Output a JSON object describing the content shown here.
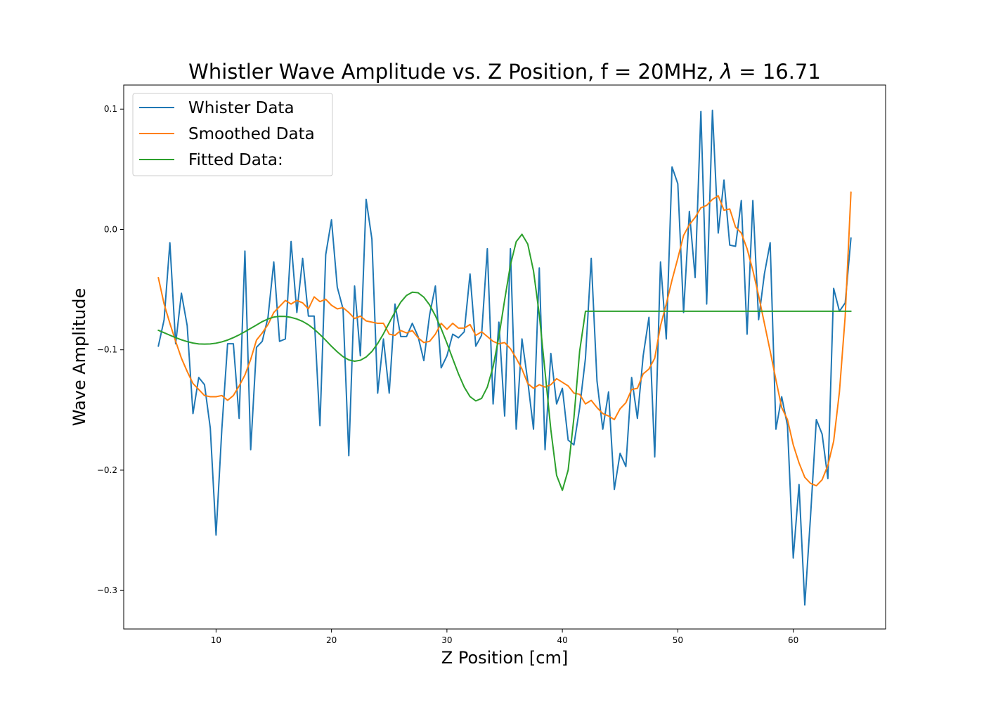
{
  "chart_data": {
    "type": "line",
    "title_prefix": "Whistler Wave Amplitude vs. Z Position, f = 20MHz, ",
    "title_lambda": "λ",
    "title_suffix": " =  16.71",
    "xlabel": "Z Position [cm]",
    "ylabel": "Wave Amplitude",
    "xlim": [
      2,
      68
    ],
    "ylim": [
      -0.332,
      0.12
    ],
    "xticks": [
      10,
      20,
      30,
      40,
      50,
      60
    ],
    "xtick_labels": [
      "10",
      "20",
      "30",
      "40",
      "50",
      "60"
    ],
    "yticks": [
      0.1,
      0.0,
      -0.1,
      -0.2,
      -0.3
    ],
    "ytick_labels": [
      "0.1",
      "0.0",
      "−0.1",
      "−0.2",
      "−0.3"
    ],
    "grid": false,
    "legend_position": "upper-left",
    "series": [
      {
        "name": "Whister Data",
        "color": "#1f77b4",
        "x": [
          5.0,
          5.5,
          6.0,
          6.5,
          7.0,
          7.5,
          8.0,
          8.5,
          9.0,
          9.5,
          10.0,
          10.5,
          11.0,
          11.5,
          12.0,
          12.5,
          13.0,
          13.5,
          14.0,
          14.5,
          15.0,
          15.5,
          16.0,
          16.5,
          17.0,
          17.5,
          18.0,
          18.5,
          19.0,
          19.5,
          20.0,
          20.5,
          21.0,
          21.5,
          22.0,
          22.5,
          23.0,
          23.5,
          24.0,
          24.5,
          25.0,
          25.5,
          26.0,
          26.5,
          27.0,
          27.5,
          28.0,
          28.5,
          29.0,
          29.5,
          30.0,
          30.5,
          31.0,
          31.5,
          32.0,
          32.5,
          33.0,
          33.5,
          34.0,
          34.5,
          35.0,
          35.5,
          36.0,
          36.5,
          37.0,
          37.5,
          38.0,
          38.5,
          39.0,
          39.5,
          40.0,
          40.5,
          41.0,
          41.5,
          42.0,
          42.5,
          43.0,
          43.5,
          44.0,
          44.5,
          45.0,
          45.5,
          46.0,
          46.5,
          47.0,
          47.5,
          48.0,
          48.5,
          49.0,
          49.5,
          50.0,
          50.5,
          51.0,
          51.5,
          52.0,
          52.5,
          53.0,
          53.5,
          54.0,
          54.5,
          55.0,
          55.5,
          56.0,
          56.5,
          57.0,
          57.5,
          58.0,
          58.5,
          59.0,
          59.5,
          60.0,
          60.5,
          61.0,
          61.5,
          62.0,
          62.5,
          63.0,
          63.5,
          64.0,
          64.5,
          65.0
        ],
        "y": [
          -0.097,
          -0.075,
          -0.011,
          -0.095,
          -0.053,
          -0.08,
          -0.153,
          -0.123,
          -0.129,
          -0.165,
          -0.254,
          -0.166,
          -0.095,
          -0.095,
          -0.157,
          -0.018,
          -0.183,
          -0.098,
          -0.093,
          -0.073,
          -0.027,
          -0.093,
          -0.091,
          -0.01,
          -0.069,
          -0.024,
          -0.072,
          -0.072,
          -0.163,
          -0.021,
          0.008,
          -0.048,
          -0.066,
          -0.188,
          -0.047,
          -0.105,
          0.025,
          -0.008,
          -0.136,
          -0.091,
          -0.136,
          -0.062,
          -0.089,
          -0.089,
          -0.078,
          -0.089,
          -0.109,
          -0.071,
          -0.047,
          -0.115,
          -0.105,
          -0.087,
          -0.09,
          -0.085,
          -0.037,
          -0.097,
          -0.088,
          -0.016,
          -0.145,
          -0.077,
          -0.155,
          -0.016,
          -0.166,
          -0.091,
          -0.126,
          -0.166,
          -0.032,
          -0.183,
          -0.103,
          -0.145,
          -0.132,
          -0.175,
          -0.179,
          -0.148,
          -0.107,
          -0.024,
          -0.126,
          -0.166,
          -0.135,
          -0.216,
          -0.186,
          -0.197,
          -0.123,
          -0.157,
          -0.105,
          -0.073,
          -0.189,
          -0.027,
          -0.091,
          0.052,
          0.038,
          -0.069,
          0.015,
          -0.04,
          0.098,
          -0.062,
          0.099,
          -0.003,
          0.041,
          -0.013,
          -0.014,
          0.024,
          -0.087,
          0.024,
          -0.075,
          -0.037,
          -0.011,
          -0.166,
          -0.139,
          -0.163,
          -0.273,
          -0.212,
          -0.312,
          -0.238,
          -0.158,
          -0.17,
          -0.207,
          -0.049,
          -0.068,
          -0.061,
          -0.007
        ]
      },
      {
        "name": "Smoothed Data",
        "color": "#ff7f0e",
        "x": [
          5.0,
          5.5,
          6.0,
          6.5,
          7.0,
          7.5,
          8.0,
          8.5,
          9.0,
          9.5,
          10.0,
          10.5,
          11.0,
          11.5,
          12.0,
          12.5,
          13.0,
          13.5,
          14.0,
          14.5,
          15.0,
          15.5,
          16.0,
          16.5,
          17.0,
          17.5,
          18.0,
          18.5,
          19.0,
          19.5,
          20.0,
          20.5,
          21.0,
          21.5,
          22.0,
          22.5,
          23.0,
          23.5,
          24.0,
          24.5,
          25.0,
          25.5,
          26.0,
          26.5,
          27.0,
          27.5,
          28.0,
          28.5,
          29.0,
          29.5,
          30.0,
          30.5,
          31.0,
          31.5,
          32.0,
          32.5,
          33.0,
          33.5,
          34.0,
          34.5,
          35.0,
          35.5,
          36.0,
          36.5,
          37.0,
          37.5,
          38.0,
          38.5,
          39.0,
          39.5,
          40.0,
          40.5,
          41.0,
          41.5,
          42.0,
          42.5,
          43.0,
          43.5,
          44.0,
          44.5,
          45.0,
          45.5,
          46.0,
          46.5,
          47.0,
          47.5,
          48.0,
          48.5,
          49.0,
          49.5,
          50.0,
          50.5,
          51.0,
          51.5,
          52.0,
          52.5,
          53.0,
          53.5,
          54.0,
          54.5,
          55.0,
          55.5,
          56.0,
          56.5,
          57.0,
          57.5,
          58.0,
          58.5,
          59.0,
          59.5,
          60.0,
          60.5,
          61.0,
          61.5,
          62.0,
          62.5,
          63.0,
          63.5,
          64.0,
          64.5,
          65.0
        ],
        "y": [
          -0.04,
          -0.062,
          -0.078,
          -0.093,
          -0.107,
          -0.118,
          -0.128,
          -0.133,
          -0.138,
          -0.139,
          -0.139,
          -0.138,
          -0.142,
          -0.138,
          -0.13,
          -0.121,
          -0.108,
          -0.092,
          -0.086,
          -0.079,
          -0.069,
          -0.064,
          -0.059,
          -0.062,
          -0.059,
          -0.061,
          -0.066,
          -0.056,
          -0.06,
          -0.058,
          -0.063,
          -0.066,
          -0.065,
          -0.069,
          -0.074,
          -0.072,
          -0.076,
          -0.077,
          -0.078,
          -0.078,
          -0.087,
          -0.088,
          -0.084,
          -0.086,
          -0.084,
          -0.09,
          -0.094,
          -0.093,
          -0.087,
          -0.078,
          -0.083,
          -0.078,
          -0.082,
          -0.082,
          -0.079,
          -0.088,
          -0.085,
          -0.089,
          -0.093,
          -0.095,
          -0.094,
          -0.099,
          -0.107,
          -0.116,
          -0.128,
          -0.132,
          -0.129,
          -0.131,
          -0.129,
          -0.124,
          -0.127,
          -0.13,
          -0.136,
          -0.137,
          -0.145,
          -0.142,
          -0.148,
          -0.153,
          -0.155,
          -0.158,
          -0.149,
          -0.144,
          -0.133,
          -0.132,
          -0.12,
          -0.116,
          -0.107,
          -0.08,
          -0.062,
          -0.042,
          -0.024,
          -0.005,
          0.004,
          0.01,
          0.018,
          0.02,
          0.025,
          0.028,
          0.016,
          0.017,
          0.002,
          -0.003,
          -0.016,
          -0.034,
          -0.055,
          -0.078,
          -0.101,
          -0.125,
          -0.148,
          -0.158,
          -0.179,
          -0.194,
          -0.206,
          -0.211,
          -0.213,
          -0.208,
          -0.196,
          -0.176,
          -0.135,
          -0.072,
          0.031
        ]
      },
      {
        "name": "Fitted Data:",
        "color": "#2ca02c",
        "x": [
          5.0,
          5.5,
          6.0,
          6.5,
          7.0,
          7.5,
          8.0,
          8.5,
          9.0,
          9.5,
          10.0,
          10.5,
          11.0,
          11.5,
          12.0,
          12.5,
          13.0,
          13.5,
          14.0,
          14.5,
          15.0,
          15.5,
          16.0,
          16.5,
          17.0,
          17.5,
          18.0,
          18.5,
          19.0,
          19.5,
          20.0,
          20.5,
          21.0,
          21.5,
          22.0,
          22.5,
          23.0,
          23.5,
          24.0,
          24.5,
          25.0,
          25.5,
          26.0,
          26.5,
          27.0,
          27.5,
          28.0,
          28.5,
          29.0,
          29.5,
          30.0,
          30.5,
          31.0,
          31.5,
          32.0,
          32.5,
          33.0,
          33.5,
          34.0,
          34.5,
          35.0,
          35.5,
          36.0,
          36.5,
          37.0,
          37.5,
          38.0,
          38.5,
          39.0,
          39.5,
          40.0,
          40.5,
          41.0,
          41.5,
          42.0,
          42.5,
          43.0,
          43.5,
          44.0,
          44.5,
          45.0,
          45.5,
          46.0,
          46.5,
          47.0,
          47.5,
          48.0,
          48.5,
          49.0,
          49.5,
          50.0,
          50.5,
          51.0,
          51.5,
          52.0,
          52.5,
          53.0,
          53.5,
          54.0,
          54.5,
          55.0,
          55.5,
          56.0,
          56.5,
          57.0,
          57.5,
          58.0,
          58.5,
          59.0,
          59.5,
          60.0,
          60.5,
          61.0,
          61.5,
          62.0,
          62.5,
          63.0,
          63.5,
          64.0,
          64.5,
          65.0
        ],
        "y": [
          -0.0838,
          -0.0858,
          -0.0879,
          -0.0899,
          -0.0917,
          -0.0932,
          -0.0944,
          -0.0951,
          -0.0953,
          -0.0951,
          -0.0945,
          -0.0934,
          -0.0919,
          -0.0899,
          -0.0876,
          -0.085,
          -0.0822,
          -0.0794,
          -0.0766,
          -0.0744,
          -0.0728,
          -0.0722,
          -0.0723,
          -0.0731,
          -0.0744,
          -0.0764,
          -0.0792,
          -0.0829,
          -0.0873,
          -0.0921,
          -0.0971,
          -0.1017,
          -0.1057,
          -0.1084,
          -0.1095,
          -0.1087,
          -0.106,
          -0.1014,
          -0.0948,
          -0.0867,
          -0.0776,
          -0.0685,
          -0.0604,
          -0.0548,
          -0.0521,
          -0.0526,
          -0.0563,
          -0.0627,
          -0.0717,
          -0.0824,
          -0.0945,
          -0.1074,
          -0.12,
          -0.131,
          -0.1389,
          -0.1425,
          -0.1404,
          -0.131,
          -0.114,
          -0.0891,
          -0.0586,
          -0.0295,
          -0.0102,
          -0.004,
          -0.0121,
          -0.0345,
          -0.0707,
          -0.1182,
          -0.1663,
          -0.2043,
          -0.2168,
          -0.2,
          -0.1565,
          -0.1009,
          -0.068,
          -0.068,
          -0.068,
          -0.068,
          -0.068,
          -0.068,
          -0.068,
          -0.068,
          -0.068,
          -0.068,
          -0.068,
          -0.068,
          -0.068,
          -0.068,
          -0.068,
          -0.068,
          -0.068,
          -0.068,
          -0.068,
          -0.068,
          -0.068,
          -0.068,
          -0.068,
          -0.068,
          -0.068,
          -0.068,
          -0.068,
          -0.068,
          -0.068,
          -0.068,
          -0.068,
          -0.068,
          -0.068,
          -0.068,
          -0.068,
          -0.068,
          -0.068,
          -0.068,
          -0.068,
          -0.068,
          -0.068,
          -0.068,
          -0.068,
          -0.068,
          -0.068,
          -0.068,
          -0.068
        ]
      }
    ]
  }
}
